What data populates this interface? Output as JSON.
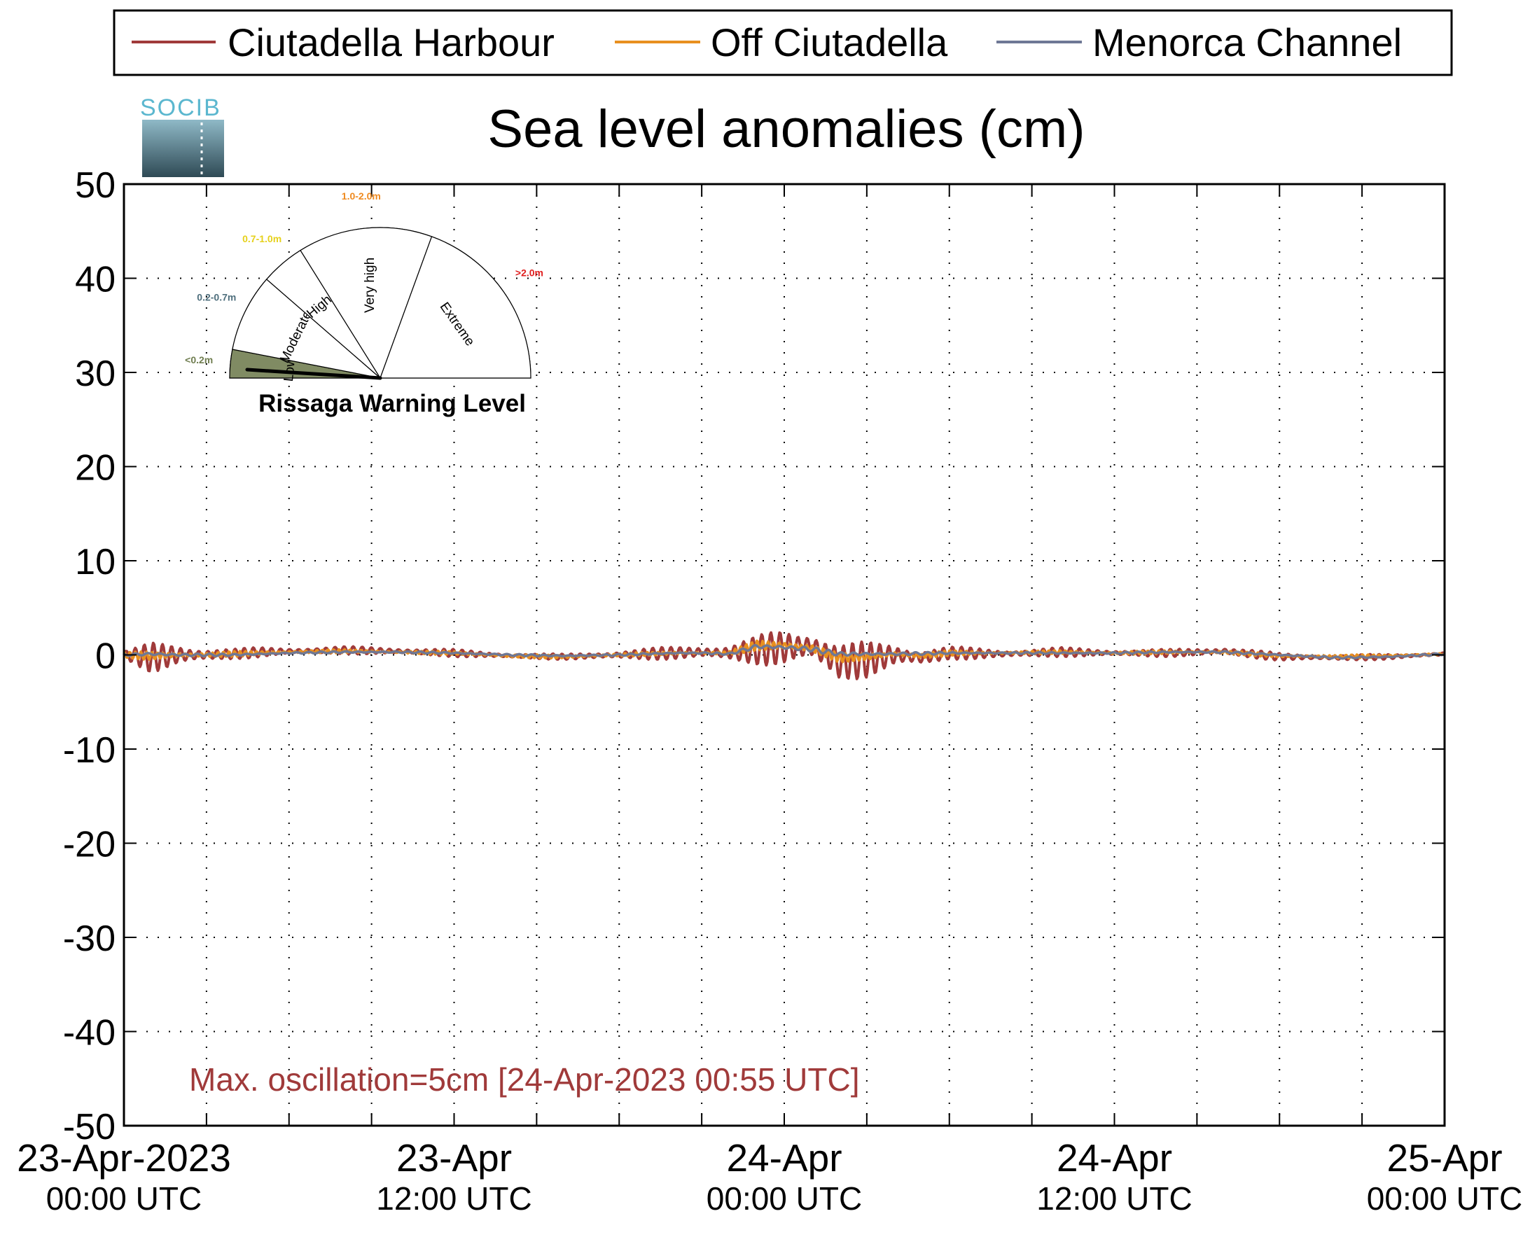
{
  "chart_data": {
    "type": "line",
    "title": "Sea level anomalies (cm)",
    "xlabel": "",
    "ylabel": "",
    "ylim": [
      -50,
      50
    ],
    "y_ticks": [
      "50",
      "40",
      "30",
      "20",
      "10",
      "0",
      "-10",
      "-20",
      "-30",
      "-40",
      "-50"
    ],
    "xlim": [
      "23-Apr-2023 00:00",
      "25-Apr-2023 00:00"
    ],
    "x_ticks": [
      {
        "line1": "23-Apr-2023",
        "line2": "00:00 UTC"
      },
      {
        "line1": "23-Apr",
        "line2": "12:00 UTC"
      },
      {
        "line1": "24-Apr",
        "line2": "00:00 UTC"
      },
      {
        "line1": "24-Apr",
        "line2": "12:00 UTC"
      },
      {
        "line1": "25-Apr",
        "line2": "00:00 UTC"
      }
    ],
    "grid": true,
    "legend_position": "top",
    "annotation": "Max. oscillation=5cm [24-Apr-2023 00:55 UTC]",
    "series": [
      {
        "name": "Ciutadella Harbour",
        "color": "#a03a3a",
        "x_hours": [
          0,
          1,
          2,
          3,
          4,
          5,
          6,
          8,
          10,
          12,
          14,
          16,
          18,
          20,
          21,
          22,
          23,
          24,
          25,
          26,
          27,
          28,
          29,
          30,
          32,
          34,
          36,
          38,
          40,
          42,
          44,
          46,
          48
        ],
        "y": [
          0,
          -0.3,
          0,
          0,
          0.1,
          0.3,
          0.4,
          0.5,
          0.4,
          0.2,
          -0.1,
          -0.2,
          0,
          0.2,
          0.3,
          0.2,
          0.5,
          0.8,
          0.9,
          -0.8,
          -0.5,
          0.0,
          -0.3,
          0.2,
          0.1,
          0.3,
          0.2,
          0.2,
          0.4,
          -0.2,
          -0.3,
          -0.2,
          0.1
        ],
        "amplitude_cm": [
          0.5,
          1.6,
          1.2,
          0.9,
          0.6,
          0.5,
          0.4,
          0.4,
          0.4,
          0.4,
          0.3,
          0.3,
          0.5,
          0.7,
          0.9,
          0.9,
          1.5,
          2.2,
          2.2,
          2.1,
          1.9,
          1.5,
          1.1,
          0.7,
          0.5,
          0.5,
          0.4,
          0.4,
          0.5,
          0.4,
          0.3,
          0.3,
          0.2
        ]
      },
      {
        "name": "Off Ciutadella",
        "color": "#e8901f",
        "x_hours": [
          0,
          1,
          2,
          3,
          4,
          6,
          8,
          10,
          12,
          14,
          16,
          18,
          20,
          21,
          22,
          23,
          24,
          25,
          26,
          27,
          28,
          29,
          30,
          32,
          34,
          36,
          38,
          40,
          42,
          44,
          46,
          48
        ],
        "y": [
          0,
          -0.1,
          0,
          0,
          0.1,
          0.3,
          0.4,
          0.3,
          0.2,
          -0.1,
          -0.2,
          0,
          0.2,
          0.2,
          0.2,
          1.0,
          1.0,
          0.7,
          -0.3,
          -0.2,
          0.1,
          -0.1,
          0.2,
          0.2,
          0.3,
          0.2,
          0.3,
          0.3,
          -0.1,
          -0.2,
          -0.1,
          0.1
        ],
        "amplitude_cm": [
          0.3,
          0.5,
          0.4,
          0.3,
          0.3,
          0.2,
          0.2,
          0.2,
          0.2,
          0.2,
          0.2,
          0.2,
          0.2,
          0.2,
          0.2,
          0.6,
          0.6,
          0.6,
          0.5,
          0.4,
          0.4,
          0.3,
          0.3,
          0.2,
          0.2,
          0.2,
          0.2,
          0.2,
          0.2,
          0.2,
          0.2,
          0.1
        ]
      },
      {
        "name": "Menorca Channel",
        "color": "#6e7895",
        "x_hours": [
          0,
          1,
          2,
          4,
          6,
          8,
          10,
          12,
          14,
          16,
          18,
          20,
          21,
          22,
          23,
          24,
          25,
          26,
          27,
          28,
          30,
          32,
          34,
          36,
          38,
          40,
          42,
          44,
          46,
          48
        ],
        "y": [
          0,
          0.1,
          0,
          0,
          0.2,
          0.3,
          0.3,
          0.2,
          0,
          -0.1,
          0,
          0.2,
          0.2,
          0.1,
          0.9,
          0.8,
          0.6,
          0.1,
          0.1,
          0.1,
          0.2,
          0.2,
          0.2,
          0.2,
          0.3,
          0.3,
          0,
          -0.3,
          -0.2,
          0.1
        ],
        "amplitude_cm": [
          0.1,
          0.2,
          0.2,
          0.1,
          0.1,
          0.1,
          0.1,
          0.1,
          0.1,
          0.1,
          0.1,
          0.1,
          0.1,
          0.1,
          0.3,
          0.3,
          0.3,
          0.2,
          0.2,
          0.2,
          0.1,
          0.1,
          0.1,
          0.1,
          0.1,
          0.1,
          0.1,
          0.1,
          0.1,
          0.1
        ]
      }
    ]
  },
  "logo": {
    "text": "SOCIB"
  },
  "gauge": {
    "title": "Rissaga Warning Level",
    "current_level": "Low",
    "sectors": [
      {
        "name": "Low",
        "range": "<0.2m",
        "range_color": "#6f7d4f",
        "active": true
      },
      {
        "name": "Moderate",
        "range": "0.2-0.7m",
        "range_color": "#4f6f7d",
        "active": false
      },
      {
        "name": "High",
        "range": "0.7-1.0m",
        "range_color": "#e6d11b",
        "active": false
      },
      {
        "name": "Very high",
        "range": "1.0-2.0m",
        "range_color": "#ef8a1f",
        "active": false
      },
      {
        "name": "Extreme",
        "range": ">2.0m",
        "range_color": "#e01e1e",
        "active": false
      }
    ],
    "active_fill": "#808b63"
  }
}
